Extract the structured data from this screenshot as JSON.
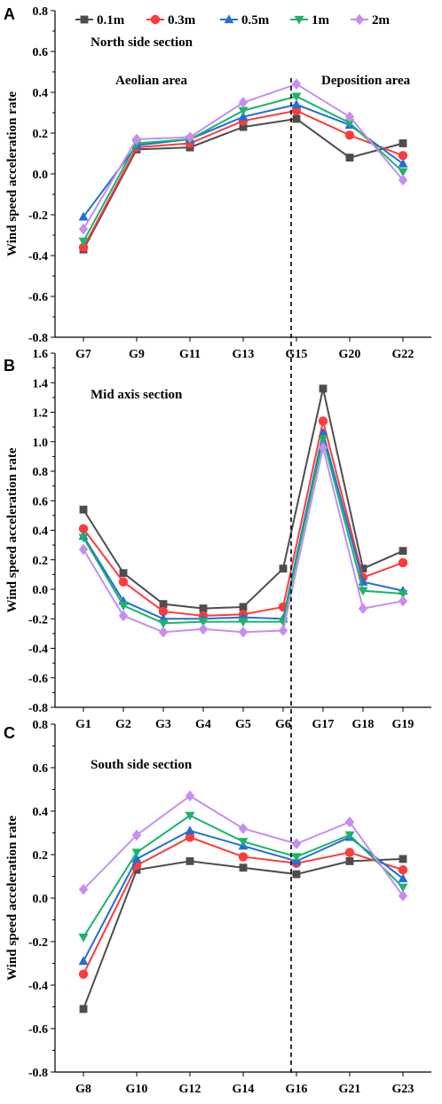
{
  "legend": [
    {
      "name": "0.1m",
      "color": "#4d4d4d",
      "marker": "square"
    },
    {
      "name": "0.3m",
      "color": "#ff3b3b",
      "marker": "circle"
    },
    {
      "name": "0.5m",
      "color": "#1f6fd6",
      "marker": "triangle-up"
    },
    {
      "name": "1m",
      "color": "#1db36b",
      "marker": "triangle-down"
    },
    {
      "name": "2m",
      "color": "#c58ef0",
      "marker": "diamond"
    }
  ],
  "chart_data": [
    {
      "type": "line",
      "panel": "A",
      "title": "North side section",
      "ylabel": "Wind speed acceleration rate",
      "ylim": [
        -0.8,
        0.8
      ],
      "yticks": [
        -0.8,
        -0.6,
        -0.4,
        -0.2,
        0.0,
        0.2,
        0.4,
        0.6,
        0.8
      ],
      "categories": [
        "G7",
        "G9",
        "G11",
        "G13",
        "G15",
        "G20",
        "G22"
      ],
      "annotations": [
        "Aeolian area",
        "Deposition area"
      ],
      "series": [
        {
          "name": "0.1m",
          "values": [
            -0.37,
            0.12,
            0.13,
            0.23,
            0.27,
            0.08,
            0.15
          ]
        },
        {
          "name": "0.3m",
          "values": [
            -0.36,
            0.13,
            0.15,
            0.26,
            0.31,
            0.19,
            0.09
          ]
        },
        {
          "name": "0.5m",
          "values": [
            -0.21,
            0.14,
            0.17,
            0.28,
            0.34,
            0.24,
            0.05
          ]
        },
        {
          "name": "1m",
          "values": [
            -0.33,
            0.15,
            0.17,
            0.31,
            0.38,
            0.25,
            0.01
          ]
        },
        {
          "name": "2m",
          "values": [
            -0.27,
            0.17,
            0.18,
            0.35,
            0.44,
            0.28,
            -0.03
          ]
        }
      ]
    },
    {
      "type": "line",
      "panel": "B",
      "title": "Mid axis section",
      "ylabel": "Wind speed acceleration rate",
      "ylim": [
        -0.8,
        1.6
      ],
      "yticks": [
        -0.8,
        -0.6,
        -0.4,
        -0.2,
        0.0,
        0.2,
        0.4,
        0.6,
        0.8,
        1.0,
        1.2,
        1.4,
        1.6
      ],
      "categories": [
        "G1",
        "G2",
        "G3",
        "G4",
        "G5",
        "G6",
        "G17",
        "G18",
        "G19"
      ],
      "series": [
        {
          "name": "0.1m",
          "values": [
            0.54,
            0.11,
            -0.1,
            -0.13,
            -0.12,
            0.14,
            1.36,
            0.14,
            0.26
          ]
        },
        {
          "name": "0.3m",
          "values": [
            0.41,
            0.05,
            -0.15,
            -0.18,
            -0.17,
            -0.12,
            1.14,
            0.08,
            0.18
          ]
        },
        {
          "name": "0.5m",
          "values": [
            0.36,
            -0.08,
            -0.2,
            -0.2,
            -0.19,
            -0.2,
            1.06,
            0.05,
            -0.01
          ]
        },
        {
          "name": "1m",
          "values": [
            0.35,
            -0.11,
            -0.23,
            -0.22,
            -0.22,
            -0.22,
            1.02,
            -0.01,
            -0.03
          ]
        },
        {
          "name": "2m",
          "values": [
            0.27,
            -0.18,
            -0.29,
            -0.27,
            -0.29,
            -0.28,
            0.96,
            -0.13,
            -0.08
          ]
        }
      ]
    },
    {
      "type": "line",
      "panel": "C",
      "title": "South side section",
      "ylabel": "Wind speed acceleration rate",
      "ylim": [
        -0.8,
        0.8
      ],
      "yticks": [
        -0.8,
        -0.6,
        -0.4,
        -0.2,
        0.0,
        0.2,
        0.4,
        0.6,
        0.8
      ],
      "categories": [
        "G8",
        "G10",
        "G12",
        "G14",
        "G16",
        "G21",
        "G23"
      ],
      "series": [
        {
          "name": "0.1m",
          "values": [
            -0.51,
            0.13,
            0.17,
            0.14,
            0.11,
            0.17,
            0.18
          ]
        },
        {
          "name": "0.3m",
          "values": [
            -0.35,
            0.15,
            0.28,
            0.19,
            0.16,
            0.21,
            0.13
          ]
        },
        {
          "name": "0.5m",
          "values": [
            -0.29,
            0.18,
            0.31,
            0.24,
            0.17,
            0.28,
            0.09
          ]
        },
        {
          "name": "1m",
          "values": [
            -0.18,
            0.21,
            0.38,
            0.26,
            0.19,
            0.29,
            0.05
          ]
        },
        {
          "name": "2m",
          "values": [
            0.04,
            0.29,
            0.47,
            0.32,
            0.25,
            0.35,
            0.01
          ]
        }
      ]
    }
  ]
}
